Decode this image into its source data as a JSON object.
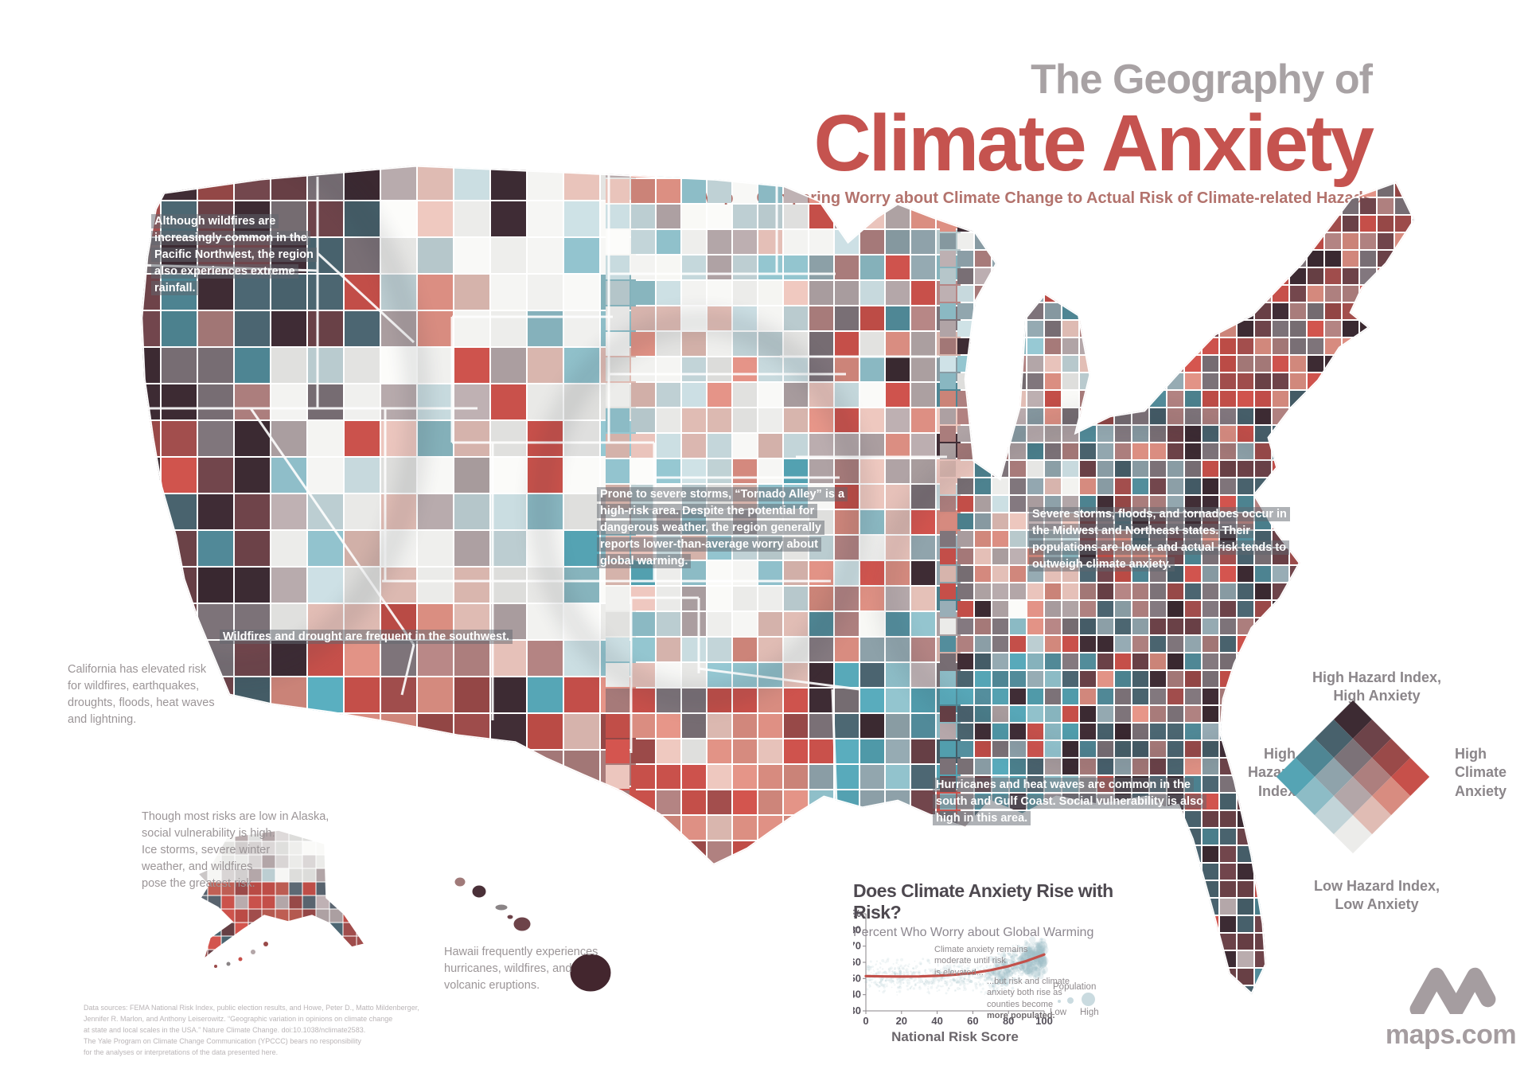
{
  "title": {
    "kicker": "The Geography of",
    "main": "Climate Anxiety",
    "subtitle": "Map 1: Comparing Worry about Climate Change to Actual Risk of Climate-related Hazads"
  },
  "annotations": {
    "pnw": "Although wildfires are increasingly common in the Pacific Northwest, the region also experiences extreme rainfall.",
    "tornado": "Prone to severe storms, “Tornado Alley” is a high-risk area. Despite the potential for dangerous weather, the region generally reports lower-than-average worry about global warming.",
    "midwest": "Severe storms, floods, and tornadoes occur in the Midwest and Northeast states. Their populations are lower, and actual risk tends to outweigh climate anxiety.",
    "southwest": "Wildfires and drought are frequent in the southwest.",
    "gulf": "Hurricanes and heat waves are common in the south and Gulf Coast. Social vulnerability is also high in this area.",
    "california": "California has elevated risk\nfor wildfires, earthquakes,\ndroughts, floods, heat waves\nand lightning.",
    "alaska": "Though most risks are low in Alaska,\nsocial vulnerability is high.\nIce storms, severe winter\nweather, and wildfires\npose the greatest risk.",
    "hawaii": "Hawaii frequently experiences\nhurricanes, wildfires, and\nvolcanic eruptions."
  },
  "legend": {
    "top_label": "High Hazard Index,\nHigh Anxiety",
    "bottom_label": "Low Hazard Index,\nLow Anxiety",
    "left_label": "High\nHazard\nIndex",
    "right_label": "High\nClimate\nAnxiety",
    "left_color": "#4ba2b2",
    "right_color": "#c2423e",
    "grid_rows": [
      [
        "#3d2b33",
        "#6d4349",
        "#9a4a49",
        "#c7504a"
      ],
      [
        "#48616c",
        "#7c7278",
        "#ad7f7e",
        "#d88c80"
      ],
      [
        "#4f8694",
        "#8fa3ab",
        "#b3a6a8",
        "#e0bcb4"
      ],
      [
        "#55a4b4",
        "#8dbcc6",
        "#c2d4d8",
        "#ececea"
      ]
    ]
  },
  "chart_data": {
    "type": "scatter",
    "title": "Does Climate Anxiety Rise with Risk?",
    "subtitle": "Percent Who Worry about Global Warming",
    "xlabel": "National Risk Score",
    "xlim": [
      0,
      100
    ],
    "ylim": [
      30,
      90
    ],
    "x_ticks": [
      0,
      20,
      40,
      60,
      80,
      100
    ],
    "y_ticks": [
      30,
      40,
      50,
      60,
      70,
      80
    ],
    "y_top_tick_label": "90%",
    "grid": false,
    "legend_position": "right",
    "scatter_color": "#9fbfc8",
    "trend": {
      "name": "trend",
      "color": "#c2504a",
      "points": [
        [
          0,
          51.5
        ],
        [
          10,
          51.3
        ],
        [
          20,
          51.2
        ],
        [
          30,
          51.3
        ],
        [
          40,
          51.7
        ],
        [
          50,
          52.4
        ],
        [
          60,
          53.4
        ],
        [
          70,
          55.2
        ],
        [
          80,
          57.6
        ],
        [
          90,
          60.8
        ],
        [
          100,
          64.8
        ]
      ]
    },
    "annotation_1": "Climate anxiety remains\nmoderate until risk\nis elevated...",
    "annotation_2": "...but risk and climate\nanxiety both rise as\ncounties become",
    "annotation_2_bold": "more populated.",
    "population_legend": {
      "title": "Population",
      "low": "Low",
      "high": "High"
    }
  },
  "footer": {
    "sources": "Data sources: FEMA National Risk Index, public election results, and Howe, Peter D., Matto Mildenberger,\nJennifer R. Marlon, and Anthony Leiserowitz. “Geographic variation in opinions on climate change\nat state and local scales in the USA.” Nature Climate Change. doi:10.1038/nclimate2583.\nThe Yale Program on Climate Change Communication (YPCCC) bears no responsibility\nfor the analyses or interpretations of the data presented here.",
    "logo_text": "maps.com"
  }
}
